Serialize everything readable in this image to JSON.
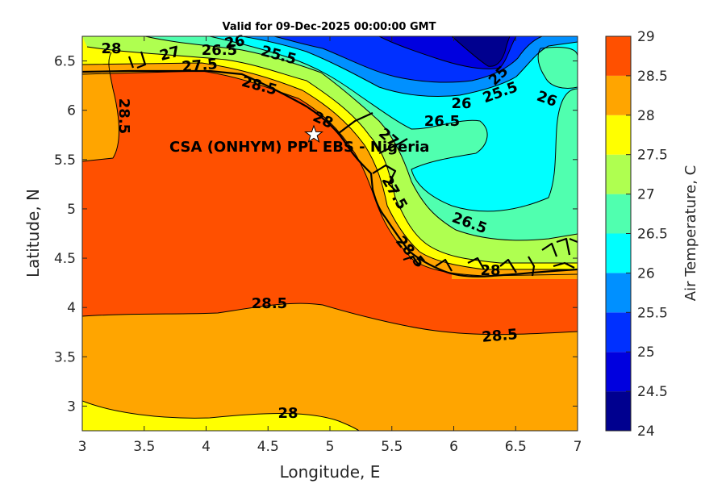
{
  "title": "Valid for 09-Dec-2025 00:00:00 GMT",
  "xlabel": "Longitude, E",
  "ylabel": "Latitude, N",
  "colorbar_label": "Air Temperature, C",
  "site_label": "CSA (ONHYM) PPL EBS - Nigeria",
  "x_ticks": [
    "3",
    "3.5",
    "4",
    "4.5",
    "5",
    "5.5",
    "6",
    "6.5",
    "7"
  ],
  "y_ticks": [
    "6.5",
    "6",
    "5.5",
    "5",
    "4.5",
    "4",
    "3.5",
    "3"
  ],
  "colorbar_ticks": [
    "29",
    "28.5",
    "28",
    "27.5",
    "27",
    "26.5",
    "26",
    "25.5",
    "25",
    "24.5",
    "24"
  ],
  "contour_labels": {
    "c1": "28",
    "c2": "27",
    "c3": "26.5",
    "c4": "26",
    "c5": "25.5",
    "c6": "27.5",
    "c7": "28.5",
    "c8": "28.5",
    "c9": "28",
    "c10": "27",
    "c11": "25",
    "c12": "25.5",
    "c13": "26",
    "c14": "26",
    "c15": "26.5",
    "c16": "27.5",
    "c17": "26.5",
    "c18": "28.5",
    "c19": "28",
    "c20": "28.5",
    "c21": "28.5",
    "c22": "28"
  },
  "colors": {
    "24": "#00008f",
    "24.5": "#0000df",
    "25": "#0030ff",
    "25.5": "#0090ff",
    "26": "#00ffff",
    "26.5": "#50ffaf",
    "27": "#afff50",
    "27.5": "#ffff00",
    "28": "#ffa500",
    "28.5": "#ff5000",
    "29": "#ff0000"
  },
  "chart_data": {
    "type": "heatmap",
    "subtype": "filled contour map",
    "title": "Valid for 09-Dec-2025 00:00:00 GMT",
    "xlabel": "Longitude, E",
    "ylabel": "Latitude, N",
    "xlim": [
      3,
      7
    ],
    "ylim": [
      2.75,
      6.75
    ],
    "colorbar": {
      "label": "Air Temperature, C",
      "range": [
        24,
        29
      ],
      "step": 0.5
    },
    "contour_levels": [
      24,
      24.5,
      25,
      25.5,
      26,
      26.5,
      27,
      27.5,
      28,
      28.5,
      29
    ],
    "site": {
      "name": "CSA (ONHYM) PPL EBS - Nigeria",
      "lon": 4.87,
      "lat": 5.75
    },
    "grid": false
  }
}
